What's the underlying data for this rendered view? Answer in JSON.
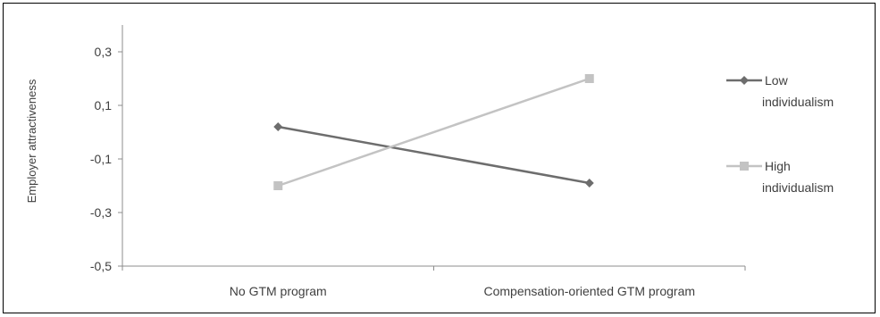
{
  "chart_data": {
    "type": "line",
    "title": "",
    "xlabel": "",
    "ylabel": "Employer attractiveness",
    "categories": [
      "No GTM program",
      "Compensation-oriented GTM program"
    ],
    "y_ticks": [
      "0,3",
      "0,1",
      "-0,1",
      "-0,3",
      "-0,5"
    ],
    "y_tick_values": [
      0.3,
      0.1,
      -0.1,
      -0.3,
      -0.5
    ],
    "ylim": [
      -0.5,
      0.4
    ],
    "grid": false,
    "legend_position": "right",
    "series": [
      {
        "name": "Low individualism",
        "legend_lines": [
          "Low",
          "individualism"
        ],
        "values": [
          0.02,
          -0.19
        ],
        "color": "#6d6d6d",
        "marker": "diamond"
      },
      {
        "name": "High individualism",
        "legend_lines": [
          "High",
          "individualism"
        ],
        "values": [
          -0.2,
          0.2
        ],
        "color": "#c3c3c3",
        "marker": "square"
      }
    ]
  }
}
